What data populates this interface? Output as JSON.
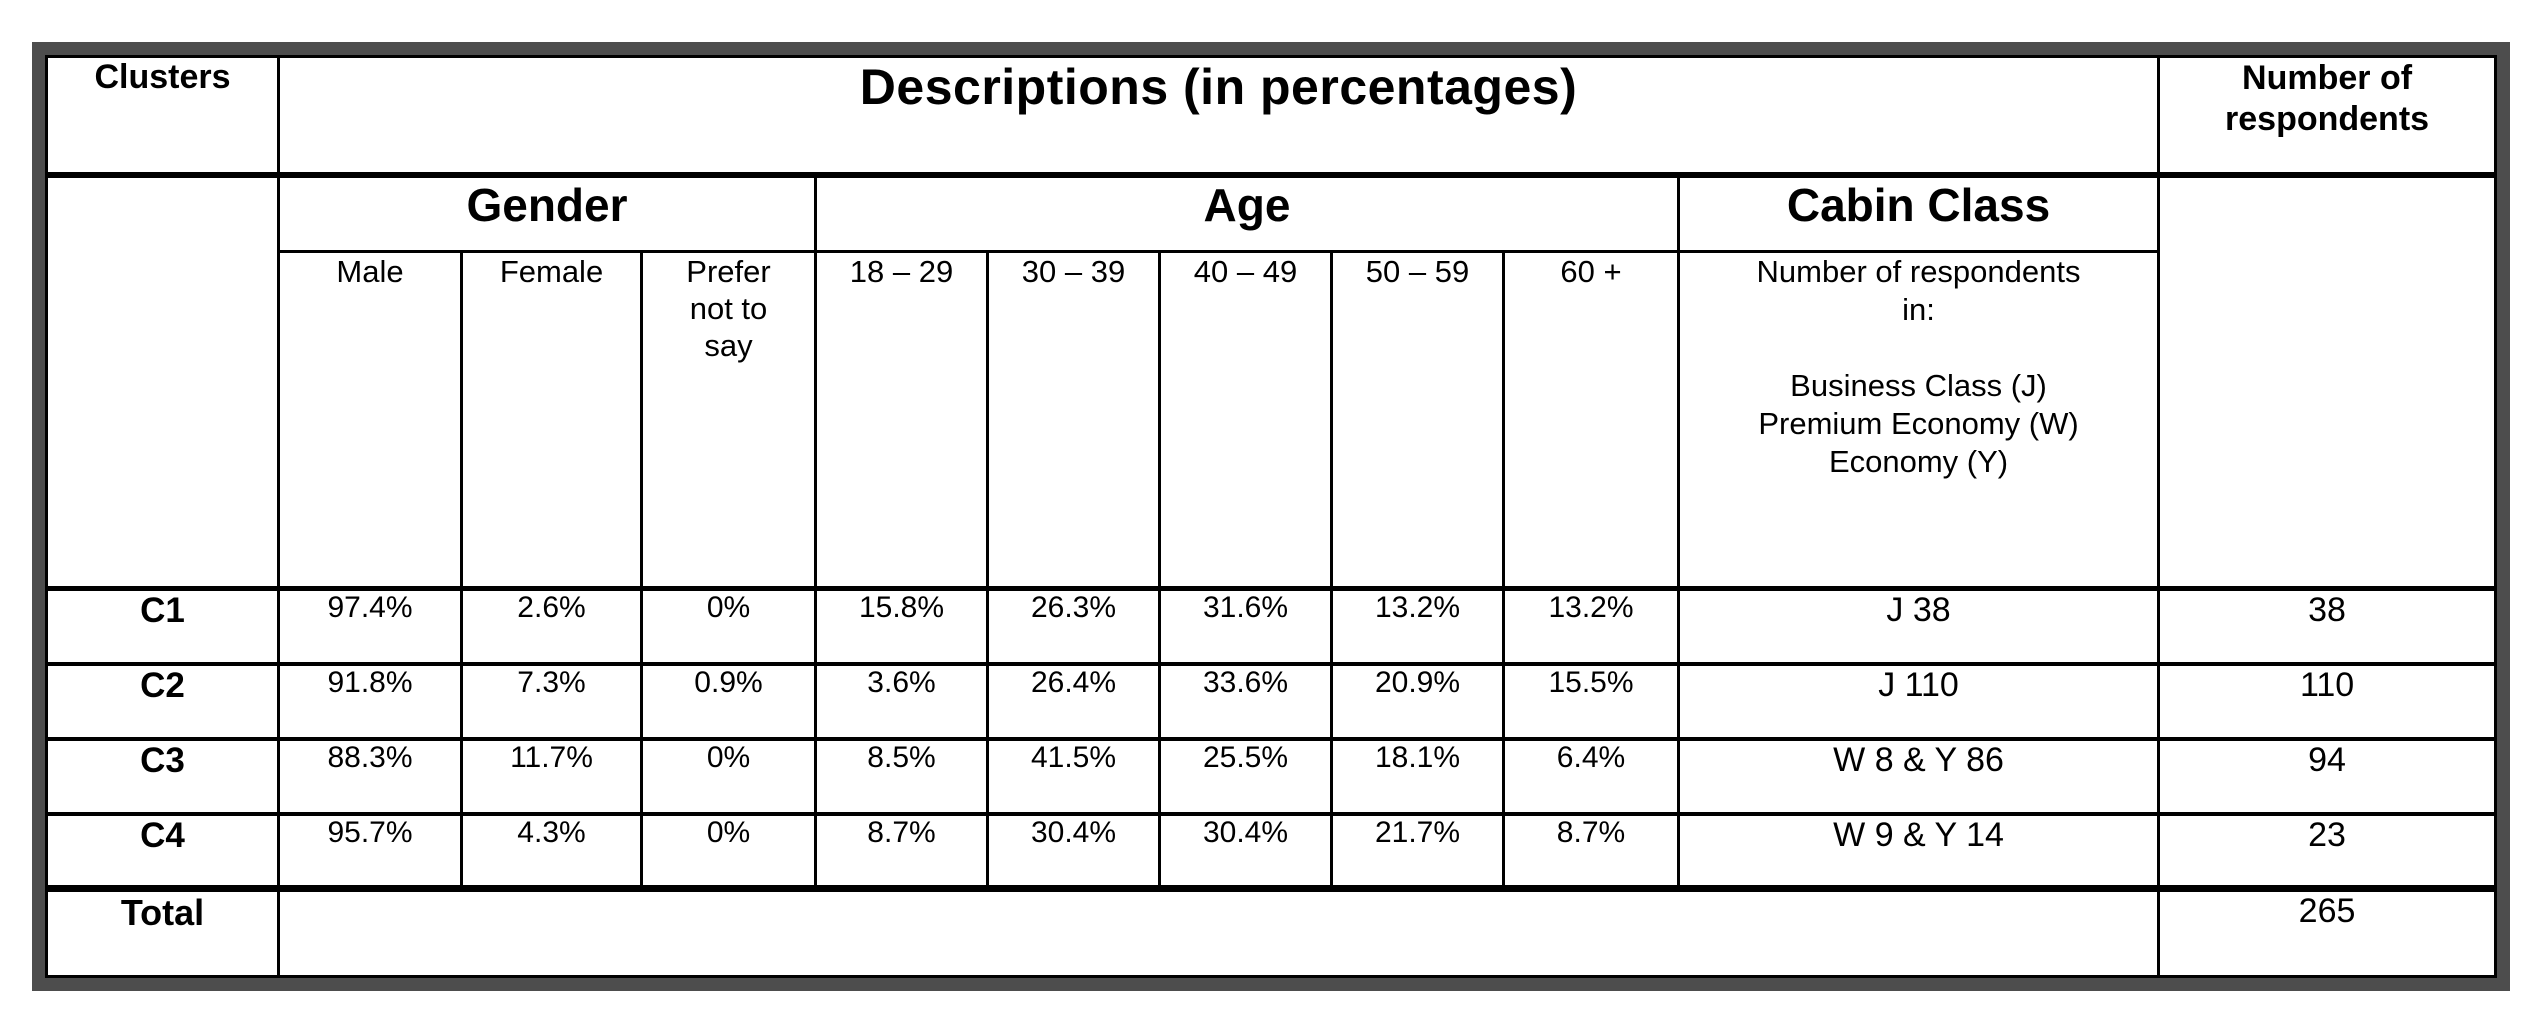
{
  "table": {
    "corner_header": "Clusters",
    "descriptions_header": "Descriptions (in percentages)",
    "respondents_header": "Number of respondents",
    "groups": {
      "gender": {
        "label": "Gender",
        "columns": [
          "Male",
          "Female",
          "Prefer not to say"
        ]
      },
      "age": {
        "label": "Age",
        "columns": [
          "18 – 29",
          "30 – 39",
          "40 – 49",
          "50 – 59",
          "60 +"
        ]
      },
      "cabin": {
        "label": "Cabin Class",
        "description_lines": [
          "Number of respondents",
          "in:",
          "",
          "Business Class (J)",
          "Premium Economy (W)",
          "Economy (Y)"
        ]
      }
    },
    "rows": [
      {
        "cluster": "C1",
        "gender": [
          "97.4%",
          "2.6%",
          "0%"
        ],
        "age": [
          "15.8%",
          "26.3%",
          "31.6%",
          "13.2%",
          "13.2%"
        ],
        "cabin": "J 38",
        "respondents": "38"
      },
      {
        "cluster": "C2",
        "gender": [
          "91.8%",
          "7.3%",
          "0.9%"
        ],
        "age": [
          "3.6%",
          "26.4%",
          "33.6%",
          "20.9%",
          "15.5%"
        ],
        "cabin": "J 110",
        "respondents": "110"
      },
      {
        "cluster": "C3",
        "gender": [
          "88.3%",
          "11.7%",
          "0%"
        ],
        "age": [
          "8.5%",
          "41.5%",
          "25.5%",
          "18.1%",
          "6.4%"
        ],
        "cabin": "W 8 & Y 86",
        "respondents": "94"
      },
      {
        "cluster": "C4",
        "gender": [
          "95.7%",
          "4.3%",
          "0%"
        ],
        "age": [
          "8.7%",
          "30.4%",
          "30.4%",
          "21.7%",
          "8.7%"
        ],
        "cabin": "W 9 & Y 14",
        "respondents": "23"
      }
    ],
    "total": {
      "label": "Total",
      "respondents": "265"
    }
  },
  "colors": {
    "outer_border": "#4d4d4d",
    "inner_border": "#000000",
    "background": "#ffffff",
    "text": "#000000"
  }
}
